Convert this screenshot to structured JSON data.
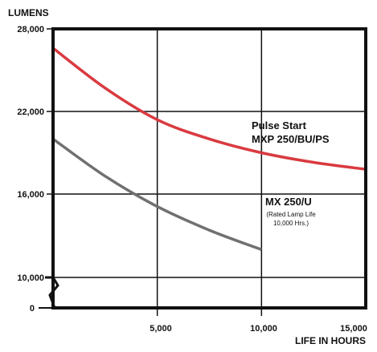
{
  "chart_data": {
    "type": "line",
    "ylabel": "LUMENS",
    "xlabel": "LIFE IN HOURS",
    "x_ticks": [
      "5,000",
      "10,000",
      "15,000"
    ],
    "y_ticks": [
      "0",
      "10,000",
      "16,000",
      "22,000",
      "28,000"
    ],
    "xlim": [
      0,
      15000
    ],
    "y_axis_break": "between 0 and 10,000",
    "grid": true,
    "series": [
      {
        "name_lines": [
          "Pulse Start",
          "MXP 250/BU/PS"
        ],
        "color": "#d93a3f",
        "x": [
          0,
          2500,
          5000,
          7500,
          10000,
          12500,
          15000
        ],
        "y": [
          26600,
          23700,
          21400,
          20000,
          19000,
          18300,
          17800
        ]
      },
      {
        "name_lines": [
          "MX 250/U"
        ],
        "note_lines": [
          "(Rated Lamp Life",
          "10,000 Hrs.)"
        ],
        "color": "#707070",
        "x": [
          0,
          2500,
          5000,
          7500,
          10000
        ],
        "y": [
          20000,
          17300,
          15100,
          13400,
          12000
        ]
      }
    ]
  }
}
